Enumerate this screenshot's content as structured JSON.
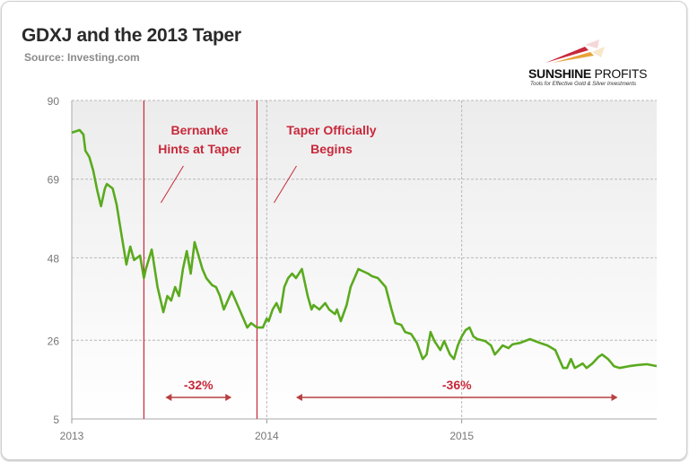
{
  "header": {
    "title": "GDXJ and the 2013 Taper",
    "source": "Source: Investing.com"
  },
  "logo": {
    "name_bold": "SUNSHINE",
    "name_light": " PROFITS",
    "tagline": "Tools for Effective Gold & Silver Investments"
  },
  "chart_data": {
    "type": "line",
    "title": "GDXJ and the 2013 Taper",
    "xlabel": "",
    "ylabel": "",
    "xlim": [
      2013.0,
      2016.0
    ],
    "ylim": [
      5,
      90
    ],
    "x_ticks": [
      {
        "value": 2013,
        "label": "2013"
      },
      {
        "value": 2014,
        "label": "2014"
      },
      {
        "value": 2015,
        "label": "2015"
      }
    ],
    "y_ticks": [
      {
        "value": 5,
        "label": "5"
      },
      {
        "value": 26,
        "label": "26"
      },
      {
        "value": 48,
        "label": "48"
      },
      {
        "value": 69,
        "label": "69"
      },
      {
        "value": 90,
        "label": "90"
      }
    ],
    "grid": true,
    "line_color": "#5aaa1e",
    "annotation_color": "#c8283a",
    "series": [
      {
        "x": [
          2013.0,
          2013.04,
          2013.06,
          2013.07,
          2013.09,
          2013.11,
          2013.13,
          2013.15,
          2013.17,
          2013.18,
          2013.21,
          2013.23,
          2013.25,
          2013.28,
          2013.3,
          2013.32,
          2013.35,
          2013.37,
          2013.38,
          2013.41,
          2013.42,
          2013.44,
          2013.47,
          2013.49,
          2013.51,
          2013.53,
          2013.55,
          2013.57,
          2013.59,
          2013.61,
          2013.63,
          2013.65,
          2013.67,
          2013.69,
          2013.72,
          2013.74,
          2013.76,
          2013.78,
          2013.8,
          2013.82,
          2013.84,
          2013.86,
          2013.88,
          2013.9,
          2013.92,
          2013.95,
          2013.98,
          2014.0,
          2014.01,
          2014.03,
          2014.05,
          2014.07,
          2014.09,
          2014.11,
          2014.13,
          2014.15,
          2014.18,
          2014.21,
          2014.23,
          2014.24,
          2014.27,
          2014.3,
          2014.32,
          2014.35,
          2014.36,
          2014.38,
          2014.41,
          2014.43,
          2014.45,
          2014.47,
          2014.49,
          2014.52,
          2014.54,
          2014.57,
          2014.59,
          2014.61,
          2014.64,
          2014.66,
          2014.69,
          2014.71,
          2014.74,
          2014.77,
          2014.8,
          2014.82,
          2014.84,
          2014.86,
          2014.89,
          2014.91,
          2014.94,
          2014.96,
          2014.98,
          2015.0,
          2015.02,
          2015.04,
          2015.06,
          2015.08,
          2015.12,
          2015.15,
          2015.17,
          2015.19,
          2015.21,
          2015.24,
          2015.26,
          2015.3,
          2015.35,
          2015.4,
          2015.44,
          2015.48,
          2015.5,
          2015.52,
          2015.54,
          2015.56,
          2015.58,
          2015.62,
          2015.64,
          2015.67,
          2015.7,
          2015.72,
          2015.75,
          2015.77,
          2015.78,
          2015.81,
          2015.86,
          2015.9,
          2015.95,
          2016.0
        ],
        "y": [
          81.4,
          82.1,
          80.9,
          76.6,
          74.9,
          71.3,
          66.1,
          61.8,
          66.5,
          67.7,
          66.5,
          62.2,
          55.8,
          46.2,
          51.0,
          47.4,
          48.6,
          42.6,
          45.0,
          50.2,
          46.9,
          40.2,
          33.5,
          37.8,
          36.6,
          40.2,
          37.8,
          45.0,
          49.8,
          43.8,
          52.2,
          48.6,
          45.0,
          42.6,
          40.7,
          40.2,
          37.8,
          34.2,
          36.6,
          39.0,
          36.6,
          34.2,
          31.8,
          29.4,
          30.6,
          29.4,
          29.4,
          31.8,
          31.1,
          34.2,
          35.9,
          33.5,
          40.2,
          42.6,
          43.8,
          42.6,
          45.0,
          37.8,
          34.2,
          35.4,
          34.2,
          35.9,
          34.2,
          33.0,
          34.2,
          31.1,
          35.4,
          40.2,
          42.6,
          45.0,
          44.5,
          43.8,
          43.1,
          42.6,
          41.4,
          40.2,
          34.2,
          30.6,
          30.1,
          28.2,
          27.7,
          25.3,
          21.0,
          22.2,
          28.2,
          25.8,
          23.4,
          25.8,
          22.2,
          21.0,
          24.6,
          27.0,
          28.7,
          29.4,
          27.0,
          26.3,
          25.8,
          24.6,
          22.2,
          23.4,
          24.6,
          23.9,
          24.9,
          25.3,
          26.3,
          25.3,
          24.6,
          23.4,
          21.0,
          18.6,
          18.6,
          21.0,
          18.6,
          19.8,
          18.6,
          19.8,
          21.5,
          22.2,
          21.0,
          19.8,
          19.1,
          18.6,
          19.1,
          19.4,
          19.6,
          19.1
        ]
      }
    ],
    "annotations": {
      "vlines": [
        2013.37,
        2013.95
      ],
      "labels": [
        {
          "lines": [
            "Bernanke",
            "Hints at Taper"
          ]
        },
        {
          "lines": [
            "Taper Officially",
            "Begins"
          ]
        }
      ],
      "ranges": [
        {
          "label": "-32%",
          "from": 2013.48,
          "to": 2013.82
        },
        {
          "label": "-36%",
          "from": 2014.15,
          "to": 2015.8
        }
      ]
    }
  }
}
